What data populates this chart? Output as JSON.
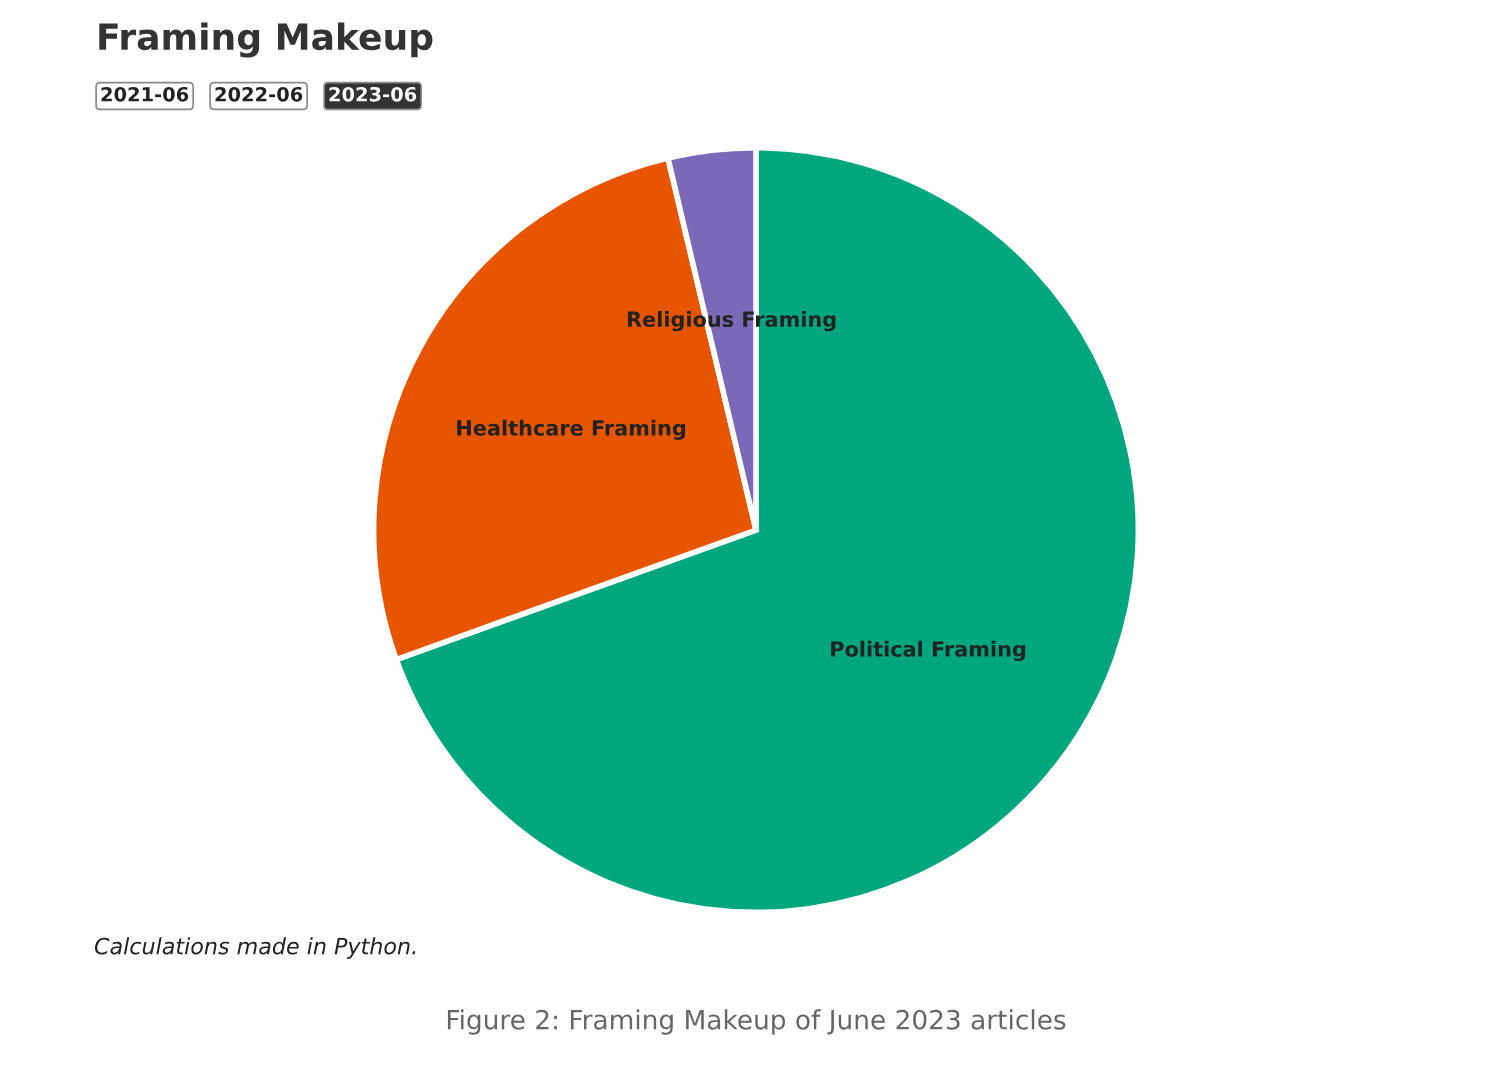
{
  "chart_data": {
    "type": "pie",
    "title": "Framing Makeup",
    "categories": [
      "Political Framing",
      "Healthcare Framing",
      "Religious Framing"
    ],
    "values": [
      69.5,
      26.8,
      3.7
    ],
    "colors": [
      "#00a67e",
      "#e85500",
      "#7b68b8"
    ],
    "annotations": [
      "2021-06",
      "2022-06",
      "2023-06",
      "Calculations made in Python.",
      "Figure 2: Framing Makeup of June 2023 articles"
    ]
  }
}
